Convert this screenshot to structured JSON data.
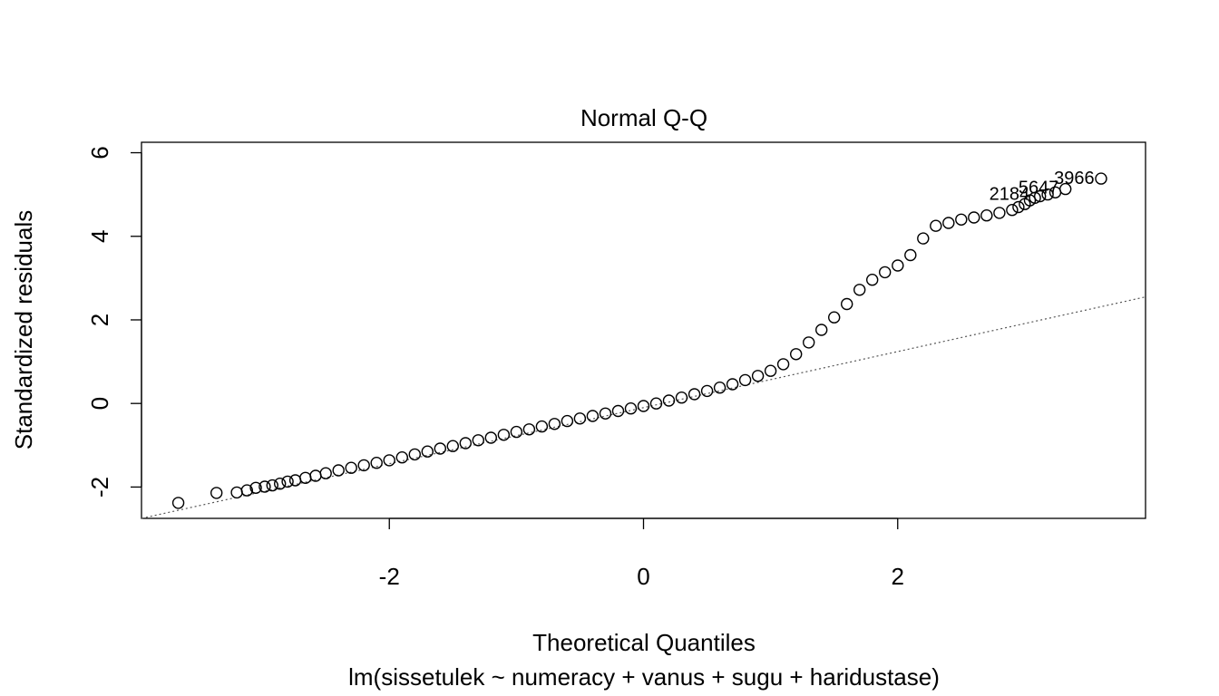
{
  "chart_data": {
    "type": "scatter",
    "title": "Normal Q-Q",
    "xlabel": "Theoretical Quantiles",
    "subtitle": "lm(sissetulek ~ numeracy + vanus + sugu + haridustase)",
    "ylabel": "Standardized residuals",
    "xlim": [
      -3.95,
      3.95
    ],
    "ylim": [
      -2.75,
      6.25
    ],
    "x_ticks": [
      -2,
      0,
      2
    ],
    "x_tick_labels": [
      "-2",
      "0",
      "2"
    ],
    "y_ticks": [
      -2,
      0,
      2,
      4,
      6
    ],
    "y_tick_labels": [
      "-2",
      "0",
      "2",
      "4",
      "6"
    ],
    "grid": false,
    "legend": "none",
    "reference_line": {
      "style": "dotted",
      "x": [
        -3.95,
        3.95
      ],
      "y": [
        -2.75,
        2.55
      ]
    },
    "series": [
      {
        "marker": "open-circle",
        "x": [
          -3.66,
          -3.36,
          -3.2,
          -3.12,
          -3.05,
          -2.98,
          -2.92,
          -2.86,
          -2.8,
          -2.74,
          -2.66,
          -2.58,
          -2.5,
          -2.4,
          -2.3,
          -2.2,
          -2.1,
          -2.0,
          -1.9,
          -1.8,
          -1.7,
          -1.6,
          -1.5,
          -1.4,
          -1.3,
          -1.2,
          -1.1,
          -1.0,
          -0.9,
          -0.8,
          -0.7,
          -0.6,
          -0.5,
          -0.4,
          -0.3,
          -0.2,
          -0.1,
          0.0,
          0.1,
          0.2,
          0.3,
          0.4,
          0.5,
          0.6,
          0.7,
          0.8,
          0.9,
          1.0,
          1.1,
          1.2,
          1.3,
          1.4,
          1.5,
          1.6,
          1.7,
          1.8,
          1.9,
          2.0,
          2.1,
          2.2,
          2.3,
          2.4,
          2.5,
          2.6,
          2.7,
          2.8,
          2.9,
          2.95,
          3.0,
          3.04,
          3.08,
          3.12,
          3.18,
          3.24,
          3.32,
          3.6
        ],
        "y": [
          -2.38,
          -2.14,
          -2.13,
          -2.08,
          -2.02,
          -1.99,
          -1.96,
          -1.92,
          -1.87,
          -1.84,
          -1.78,
          -1.73,
          -1.67,
          -1.6,
          -1.54,
          -1.48,
          -1.42,
          -1.36,
          -1.29,
          -1.22,
          -1.15,
          -1.08,
          -1.02,
          -0.95,
          -0.88,
          -0.82,
          -0.75,
          -0.68,
          -0.62,
          -0.55,
          -0.49,
          -0.42,
          -0.36,
          -0.3,
          -0.24,
          -0.18,
          -0.12,
          -0.06,
          0.0,
          0.07,
          0.14,
          0.22,
          0.3,
          0.38,
          0.46,
          0.56,
          0.66,
          0.78,
          0.94,
          1.18,
          1.46,
          1.76,
          2.06,
          2.38,
          2.72,
          2.96,
          3.14,
          3.3,
          3.55,
          3.95,
          4.25,
          4.32,
          4.4,
          4.45,
          4.5,
          4.56,
          4.63,
          4.7,
          4.77,
          4.86,
          4.92,
          4.96,
          5.0,
          5.05,
          5.13,
          5.38
        ]
      }
    ],
    "annotations": [
      {
        "text": "3966",
        "x": 3.23,
        "y": 5.38
      },
      {
        "text": "2184",
        "x": 2.72,
        "y": 5.0
      },
      {
        "text": "5647",
        "x": 2.95,
        "y": 5.16
      }
    ]
  }
}
